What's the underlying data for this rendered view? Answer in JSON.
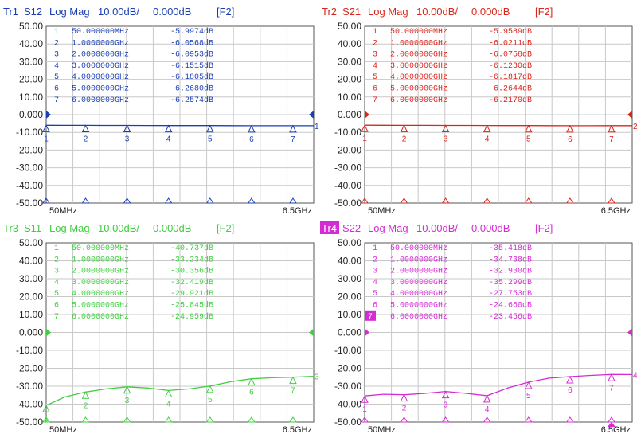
{
  "palette": {
    "grid": "#c8c8c8",
    "frame": "#555555",
    "background": "#ffffff",
    "tr1": "#1b3fb3",
    "tr2": "#d9261c",
    "tr3": "#3fcf3f",
    "tr4": "#d42bd4",
    "tr4_badge_text": "#ffffff"
  },
  "traces": [
    {
      "key": "tr1",
      "label": "Tr1",
      "measure": "S12",
      "format": "Log Mag",
      "scale": "10.00dB/",
      "ref": "0.000dB",
      "softkey": "[F2]",
      "badge": false,
      "y_ticks": [
        "50.00",
        "40.00",
        "30.00",
        "20.00",
        "10.00",
        "0.000",
        "-10.00",
        "-20.00",
        "-30.00",
        "-40.00",
        "-50.00"
      ],
      "x_start": "50MHz",
      "x_stop": "6.5GHz",
      "active_marker": "",
      "markers": [
        {
          "n": "1",
          "freq": "50.000000MHz",
          "val": "-5.9974dB"
        },
        {
          "n": "2",
          "freq": "1.0000000GHz",
          "val": "-6.0568dB"
        },
        {
          "n": "3",
          "freq": "2.0000000GHz",
          "val": "-6.0953dB"
        },
        {
          "n": "4",
          "freq": "3.0000000GHz",
          "val": "-6.1515dB"
        },
        {
          "n": "5",
          "freq": "4.0000000GHz",
          "val": "-6.1805dB"
        },
        {
          "n": "6",
          "freq": "5.0000000GHz",
          "val": "-6.2680dB"
        },
        {
          "n": "7",
          "freq": "6.0000000GHz",
          "val": "-6.2574dB"
        }
      ],
      "trace_end_label": "1",
      "series_db": [
        -5.9974,
        -6.03,
        -6.0568,
        -6.08,
        -6.0953,
        -6.12,
        -6.1515,
        -6.17,
        -6.1805,
        -6.22,
        -6.268,
        -6.26,
        -6.2574,
        -6.26
      ]
    },
    {
      "key": "tr2",
      "label": "Tr2",
      "measure": "S21",
      "format": "Log Mag",
      "scale": "10.00dB/",
      "ref": "0.000dB",
      "softkey": "[F2]",
      "badge": false,
      "y_ticks": [
        "50.00",
        "40.00",
        "30.00",
        "20.00",
        "10.00",
        "0.000",
        "-10.00",
        "-20.00",
        "-30.00",
        "-40.00",
        "-50.00"
      ],
      "x_start": "50MHz",
      "x_stop": "6.5GHz",
      "active_marker": "",
      "markers": [
        {
          "n": "1",
          "freq": "50.000000MHz",
          "val": "-5.9589dB"
        },
        {
          "n": "2",
          "freq": "1.0000000GHz",
          "val": "-6.0211dB"
        },
        {
          "n": "3",
          "freq": "2.0000000GHz",
          "val": "-6.0758dB"
        },
        {
          "n": "4",
          "freq": "3.0000000GHz",
          "val": "-6.1230dB"
        },
        {
          "n": "5",
          "freq": "4.0000000GHz",
          "val": "-6.1817dB"
        },
        {
          "n": "6",
          "freq": "5.0000000GHz",
          "val": "-6.2644dB"
        },
        {
          "n": "7",
          "freq": "6.0000000GHz",
          "val": "-6.2170dB"
        }
      ],
      "trace_end_label": "2",
      "series_db": [
        -5.9589,
        -5.99,
        -6.0211,
        -6.05,
        -6.0758,
        -6.1,
        -6.123,
        -6.15,
        -6.1817,
        -6.22,
        -6.2644,
        -6.24,
        -6.217,
        -6.22
      ]
    },
    {
      "key": "tr3",
      "label": "Tr3",
      "measure": "S11",
      "format": "Log Mag",
      "scale": "10.00dB/",
      "ref": "0.000dB",
      "softkey": "[F2]",
      "badge": false,
      "y_ticks": [
        "50.00",
        "40.00",
        "30.00",
        "20.00",
        "10.00",
        "0.000",
        "-10.00",
        "-20.00",
        "-30.00",
        "-40.00",
        "-50.00"
      ],
      "x_start": "50MHz",
      "x_stop": "6.5GHz",
      "active_marker": "",
      "markers": [
        {
          "n": "1",
          "freq": "50.000000MHz",
          "val": "-40.737dB"
        },
        {
          "n": "2",
          "freq": "1.0000000GHz",
          "val": "-33.234dB"
        },
        {
          "n": "3",
          "freq": "2.0000000GHz",
          "val": "-30.356dB"
        },
        {
          "n": "4",
          "freq": "3.0000000GHz",
          "val": "-32.419dB"
        },
        {
          "n": "5",
          "freq": "4.0000000GHz",
          "val": "-29.921dB"
        },
        {
          "n": "6",
          "freq": "5.0000000GHz",
          "val": "-25.845dB"
        },
        {
          "n": "7",
          "freq": "6.0000000GHz",
          "val": "-24.959dB"
        }
      ],
      "trace_end_label": "3",
      "series_db": [
        -40.737,
        -36,
        -33.234,
        -31.5,
        -30.356,
        -31,
        -32.419,
        -31.5,
        -29.921,
        -27.5,
        -25.845,
        -25.3,
        -24.959,
        -24.5
      ]
    },
    {
      "key": "tr4",
      "label": "Tr4",
      "measure": "S22",
      "format": "Log Mag",
      "scale": "10.00dB/",
      "ref": "0.000dB",
      "softkey": "[F2]",
      "badge": true,
      "y_ticks": [
        "50.00",
        "40.00",
        "30.00",
        "20.00",
        "10.00",
        "0.000",
        "-10.00",
        "-20.00",
        "-30.00",
        "-40.00",
        "-50.00"
      ],
      "x_start": "50MHz",
      "x_stop": "6.5GHz",
      "active_marker": "7",
      "markers": [
        {
          "n": "1",
          "freq": "50.000000MHz",
          "val": "-35.418dB"
        },
        {
          "n": "2",
          "freq": "1.0000000GHz",
          "val": "-34.738dB"
        },
        {
          "n": "3",
          "freq": "2.0000000GHz",
          "val": "-32.930dB"
        },
        {
          "n": "4",
          "freq": "3.0000000GHz",
          "val": "-35.299dB"
        },
        {
          "n": "5",
          "freq": "4.0000000GHz",
          "val": "-27.753dB"
        },
        {
          "n": "6",
          "freq": "5.0000000GHz",
          "val": "-24.660dB"
        },
        {
          "n": "7",
          "freq": "6.0000000GHz",
          "val": "-23.456dB"
        }
      ],
      "trace_end_label": "4",
      "series_db": [
        -35.418,
        -34.5,
        -34.738,
        -34,
        -32.93,
        -34,
        -35.299,
        -31,
        -27.753,
        -25.5,
        -24.66,
        -24,
        -23.456,
        -23.5
      ]
    }
  ],
  "x_points_ghz": [
    0.05,
    0.5,
    1,
    1.5,
    2,
    2.5,
    3,
    3.5,
    4,
    4.5,
    5,
    5.5,
    6,
    6.5
  ]
}
